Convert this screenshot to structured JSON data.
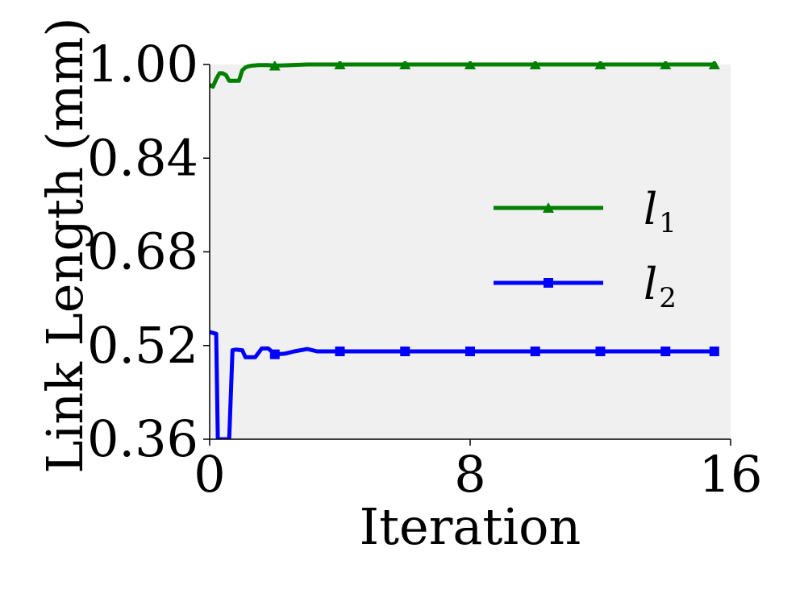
{
  "chart_data": {
    "type": "line",
    "xlabel": "Iteration",
    "ylabel": "Link Length (mm)",
    "xlim": [
      0,
      16
    ],
    "ylim": [
      0.36,
      1.0
    ],
    "xticks": [
      0,
      8,
      16
    ],
    "xtick_labels": [
      "0",
      "8",
      "16"
    ],
    "yticks": [
      0.36,
      0.52,
      0.68,
      0.84,
      1.0
    ],
    "ytick_labels": [
      "0.36",
      "0.52",
      "0.68",
      "0.84",
      "1.00"
    ],
    "grid": false,
    "legend_position": "center-right",
    "background_color": "#f0f0f0",
    "series": [
      {
        "name": "l",
        "subscript": "1",
        "color": "#008000",
        "marker": "triangle",
        "x": [
          0,
          0.1,
          0.2,
          0.3,
          0.4,
          0.5,
          0.6,
          0.7,
          0.8,
          0.9,
          1.0,
          1.1,
          1.2,
          1.3,
          1.5,
          1.8,
          2.0,
          2.5,
          3.0,
          4.0,
          6.0,
          8.0,
          10.0,
          12.0,
          14.0,
          15.5
        ],
        "y": [
          0.965,
          0.962,
          0.975,
          0.985,
          0.985,
          0.982,
          0.972,
          0.972,
          0.972,
          0.972,
          0.99,
          0.995,
          0.997,
          0.998,
          0.999,
          0.999,
          0.998,
          0.999,
          1.0,
          1.0,
          1.0,
          1.0,
          1.0,
          1.0,
          1.0,
          1.0
        ],
        "marker_x": [
          2,
          4,
          6,
          8,
          10,
          12,
          14,
          15.5
        ]
      },
      {
        "name": "l",
        "subscript": "2",
        "color": "#0000ff",
        "marker": "square",
        "x": [
          0,
          0.2,
          0.25,
          0.35,
          0.5,
          0.6,
          0.7,
          0.8,
          1.0,
          1.1,
          1.2,
          1.4,
          1.6,
          1.8,
          2.0,
          2.3,
          2.6,
          3.0,
          3.3,
          4.0,
          6.0,
          8.0,
          10.0,
          12.0,
          14.0,
          15.5
        ],
        "y": [
          0.543,
          0.54,
          0.36,
          0.36,
          0.36,
          0.36,
          0.512,
          0.513,
          0.512,
          0.5,
          0.5,
          0.5,
          0.515,
          0.515,
          0.505,
          0.506,
          0.51,
          0.514,
          0.51,
          0.51,
          0.51,
          0.51,
          0.51,
          0.51,
          0.51,
          0.51
        ],
        "marker_x": [
          2,
          4,
          6,
          8,
          10,
          12,
          14,
          15.5
        ]
      }
    ]
  }
}
